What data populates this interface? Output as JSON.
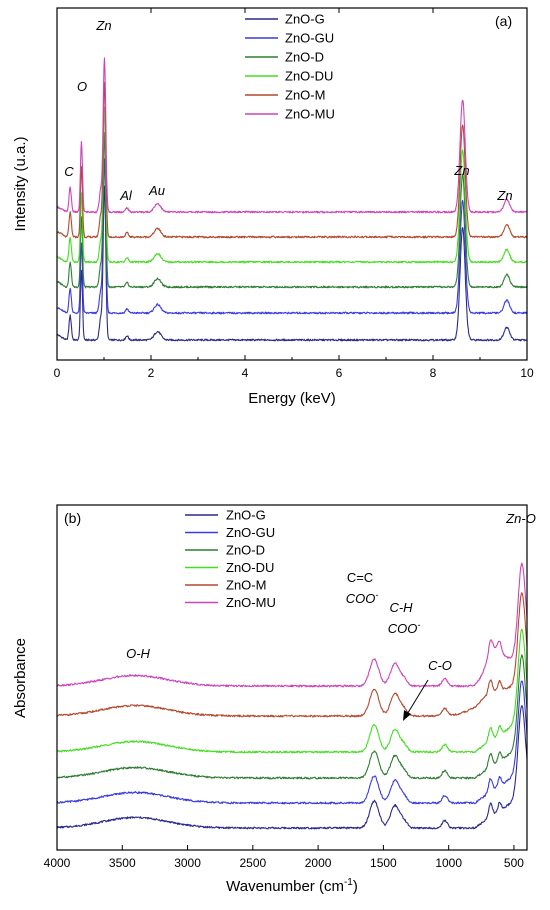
{
  "chart_data": [
    {
      "type": "line",
      "panel": "(a)",
      "xlabel": "Energy (keV)",
      "ylabel": "Intensity (u.a.)",
      "xlim": [
        0,
        10
      ],
      "xticks": [
        "0",
        "2",
        "4",
        "6",
        "8",
        "10"
      ],
      "legend_position": "top-center",
      "grid": false,
      "series": [
        {
          "name": "ZnO-G",
          "color": "#2a2a8a",
          "offset": 0
        },
        {
          "name": "ZnO-GU",
          "color": "#3a3adf",
          "offset": 1
        },
        {
          "name": "ZnO-D",
          "color": "#2e7d32",
          "offset": 2
        },
        {
          "name": "ZnO-DU",
          "color": "#44dd22",
          "offset": 3
        },
        {
          "name": "ZnO-M",
          "color": "#b34a2e",
          "offset": 4
        },
        {
          "name": "ZnO-MU",
          "color": "#cc44bb",
          "offset": 5
        }
      ],
      "peaks": [
        {
          "x": 0.28,
          "height": 0.35,
          "width": 0.025
        },
        {
          "x": 0.52,
          "height": 1.0,
          "width": 0.022
        },
        {
          "x": 0.93,
          "height": 0.3,
          "width": 0.03
        },
        {
          "x": 1.01,
          "height": 2.2,
          "width": 0.028
        },
        {
          "x": 1.49,
          "height": 0.06,
          "width": 0.03
        },
        {
          "x": 2.14,
          "height": 0.12,
          "width": 0.07
        },
        {
          "x": 8.63,
          "height": 1.6,
          "width": 0.055
        },
        {
          "x": 9.57,
          "height": 0.18,
          "width": 0.06
        }
      ],
      "annotations": [
        {
          "text": "C",
          "x": 0.28,
          "italic": true
        },
        {
          "text": "O",
          "x": 0.52,
          "italic": true
        },
        {
          "text": "Zn",
          "x": 1.0,
          "italic": true
        },
        {
          "text": "Al",
          "x": 1.5,
          "italic": true
        },
        {
          "text": "Au",
          "x": 2.14,
          "italic": true
        },
        {
          "text": "Zn",
          "x": 8.63,
          "italic": true
        },
        {
          "text": "Zn",
          "x": 9.6,
          "italic": true
        }
      ]
    },
    {
      "type": "line",
      "panel": "(b)",
      "xlabel": "Wavenumber (cm",
      "xlabel_sup": "-1",
      "xlabel_end": ")",
      "ylabel": "Absorbance",
      "xlim": [
        4000,
        400
      ],
      "xticks": [
        "4000",
        "3500",
        "3000",
        "2500",
        "2000",
        "1500",
        "1000",
        "500"
      ],
      "legend_position": "top-center",
      "grid": false,
      "series": [
        {
          "name": "ZnO-G",
          "color": "#2a2a8a",
          "offset": 0
        },
        {
          "name": "ZnO-GU",
          "color": "#3a3adf",
          "offset": 1
        },
        {
          "name": "ZnO-D",
          "color": "#2e7d32",
          "offset": 2
        },
        {
          "name": "ZnO-DU",
          "color": "#44dd22",
          "offset": 3
        },
        {
          "name": "ZnO-M",
          "color": "#b34a2e",
          "offset": 4
        },
        {
          "name": "ZnO-MU",
          "color": "#cc44bb",
          "offset": 5
        }
      ],
      "bands": [
        {
          "x": 3400,
          "height": 0.35,
          "width": 250
        },
        {
          "x": 1570,
          "height": 0.9,
          "width": 35
        },
        {
          "x": 1410,
          "height": 0.75,
          "width": 35
        },
        {
          "x": 1340,
          "height": 0.2,
          "width": 25
        },
        {
          "x": 1030,
          "height": 0.25,
          "width": 20
        },
        {
          "x": 680,
          "height": 0.45,
          "width": 15
        },
        {
          "x": 610,
          "height": 0.3,
          "width": 12
        },
        {
          "x": 440,
          "height": 3.0,
          "width": 28
        }
      ],
      "annotations": [
        {
          "text": "O-H",
          "italic": true
        },
        {
          "text": "C=C",
          "italic": false
        },
        {
          "text": "COO",
          "sup": "-",
          "italic": true
        },
        {
          "text": "C-H",
          "italic": true
        },
        {
          "text": "COO",
          "sup": "-",
          "italic": true
        },
        {
          "text": "C-O",
          "italic": true
        },
        {
          "text": "Zn-O",
          "italic": true
        }
      ]
    }
  ]
}
